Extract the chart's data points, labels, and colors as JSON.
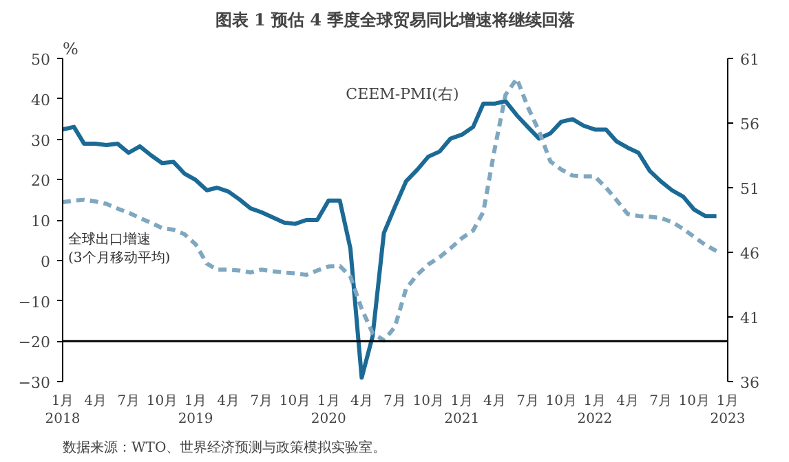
{
  "chart_data": {
    "type": "line",
    "title": "图表 1 预估 4 季度全球贸易同比增速将继续回落",
    "ylabel": "%",
    "x": [
      "2018-01",
      "2018-02",
      "2018-03",
      "2018-04",
      "2018-05",
      "2018-06",
      "2018-07",
      "2018-08",
      "2018-09",
      "2018-10",
      "2018-11",
      "2018-12",
      "2019-01",
      "2019-02",
      "2019-03",
      "2019-04",
      "2019-05",
      "2019-06",
      "2019-07",
      "2019-08",
      "2019-09",
      "2019-10",
      "2019-11",
      "2019-12",
      "2020-01",
      "2020-02",
      "2020-03",
      "2020-04",
      "2020-05",
      "2020-06",
      "2020-07",
      "2020-08",
      "2020-09",
      "2020-10",
      "2020-11",
      "2020-12",
      "2021-01",
      "2021-02",
      "2021-03",
      "2021-04",
      "2021-05",
      "2021-06",
      "2021-07",
      "2021-08",
      "2021-09",
      "2021-10",
      "2021-11",
      "2021-12",
      "2022-01",
      "2022-02",
      "2022-03",
      "2022-04",
      "2022-05",
      "2022-06",
      "2022-07",
      "2022-08",
      "2022-09",
      "2022-10",
      "2022-11",
      "2022-12"
    ],
    "series": [
      {
        "name": "CEEM-PMI(右)",
        "color": "#1b6a96",
        "axis": "y2",
        "line_style": "solid",
        "values": [
          55.5,
          55.7,
          54.4,
          54.4,
          54.3,
          54.4,
          53.7,
          54.2,
          53.5,
          52.9,
          53.0,
          52.1,
          51.6,
          50.8,
          51.0,
          50.7,
          50.1,
          49.4,
          49.1,
          48.7,
          48.3,
          48.2,
          48.5,
          48.5,
          50.0,
          50.0,
          46.3,
          36.3,
          39.5,
          47.5,
          49.5,
          51.5,
          52.4,
          53.4,
          53.8,
          54.8,
          55.1,
          55.7,
          57.5,
          57.5,
          57.7,
          56.6,
          55.7,
          54.8,
          55.2,
          56.1,
          56.3,
          55.8,
          55.5,
          55.5,
          54.6,
          54.1,
          53.7,
          52.3,
          51.5,
          50.8,
          50.3,
          49.3,
          48.8,
          48.8
        ]
      },
      {
        "name": "全球出口增速\n(3个月移动平均)",
        "color": "#7fa7c0",
        "line_style": "dashed",
        "values": [
          14.4,
          14.8,
          15,
          14.6,
          14,
          12.8,
          11.8,
          10.5,
          9.3,
          8,
          7.6,
          6.5,
          4,
          -0.8,
          -2.3,
          -2.3,
          -2.5,
          -3,
          -2.3,
          -2.7,
          -3,
          -3.2,
          -3.6,
          -2.5,
          -1.5,
          -1.4,
          -4,
          -12,
          -18,
          -19.8,
          -16.5,
          -7,
          -3.5,
          -1,
          0.8,
          3,
          5.5,
          7.4,
          12,
          27.5,
          41,
          45,
          38,
          32,
          24.5,
          22.5,
          21,
          20.8,
          20.8,
          18,
          15,
          11.5,
          11,
          10.8,
          10.5,
          9.5,
          7.8,
          5.8,
          3.8,
          2.3
        ]
      }
    ],
    "xlim": [
      "2018-01",
      "2023-01"
    ],
    "xticks": [
      {
        "value": "2018-01",
        "label": "1月\n2018"
      },
      {
        "value": "2018-04",
        "label": "4月"
      },
      {
        "value": "2018-07",
        "label": "7月"
      },
      {
        "value": "2018-10",
        "label": "10月"
      },
      {
        "value": "2019-01",
        "label": "1月\n2019"
      },
      {
        "value": "2019-04",
        "label": "4月"
      },
      {
        "value": "2019-07",
        "label": "7月"
      },
      {
        "value": "2019-10",
        "label": "10月"
      },
      {
        "value": "2020-01",
        "label": "1月\n2020"
      },
      {
        "value": "2020-04",
        "label": "4月"
      },
      {
        "value": "2020-07",
        "label": "7月"
      },
      {
        "value": "2020-10",
        "label": "10月"
      },
      {
        "value": "2021-01",
        "label": "1月\n2021"
      },
      {
        "value": "2021-04",
        "label": "4月"
      },
      {
        "value": "2021-07",
        "label": "7月"
      },
      {
        "value": "2021-10",
        "label": "10月"
      },
      {
        "value": "2022-01",
        "label": "1月\n2022"
      },
      {
        "value": "2022-04",
        "label": "4月"
      },
      {
        "value": "2022-07",
        "label": "7月"
      },
      {
        "value": "2022-10",
        "label": "10月"
      },
      {
        "value": "2023-01",
        "label": "1月\n2023"
      }
    ],
    "ylim": [
      -30,
      50
    ],
    "yticks": [
      -30,
      -20,
      -10,
      0,
      10,
      20,
      30,
      40,
      50
    ],
    "y2lim": [
      36,
      61
    ],
    "y2ticks": [
      36,
      41,
      46,
      51,
      56,
      61
    ],
    "ref_lines": [
      {
        "axis": "y",
        "value": -20,
        "color": "#000000",
        "line_style": "solid"
      }
    ],
    "grid": false,
    "annotations": [
      "数据来源：WTO、世界经济预测与政策模拟实验室。"
    ]
  }
}
